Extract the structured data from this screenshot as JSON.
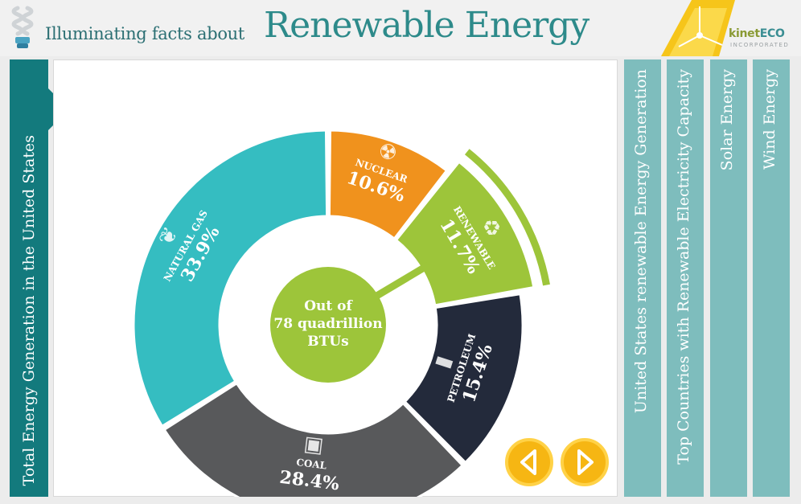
{
  "header": {
    "subtitle": "Illuminating facts about",
    "title": "Renewable Energy",
    "logo": {
      "brand_prefix": "kinet",
      "brand_suffix": "ECO",
      "sub": "INCORPORATED"
    },
    "icon": "cfl-bulb-icon"
  },
  "left_tab": {
    "label": "Total Energy Generation in the United States"
  },
  "right_tabs": [
    {
      "label": "United States renewable Energy Generation"
    },
    {
      "label": "Top Countries with Renewable Electricity Capacity"
    },
    {
      "label": "Solar Energy"
    },
    {
      "label": "Wind Energy"
    }
  ],
  "chart_data": {
    "type": "pie",
    "variant": "donut",
    "center_text": [
      "Out of",
      "78 quadrillion",
      "BTUs"
    ],
    "slices": [
      {
        "name": "NUCLEAR",
        "value": 10.6,
        "label": "10.6%",
        "color": "#f0921d",
        "icon": "radiation-icon"
      },
      {
        "name": "RENEWABLE",
        "value": 11.7,
        "label": "11.7%",
        "color": "#9dc53a",
        "icon": "recycle-icon"
      },
      {
        "name": "PETROLEUM",
        "value": 15.4,
        "label": "15.4%",
        "color": "#232a3b",
        "icon": "barrel-icon"
      },
      {
        "name": "COAL",
        "value": 28.4,
        "label": "28.4%",
        "color": "#58595b",
        "icon": "mine-cart-icon"
      },
      {
        "name": "NATURAL GAS",
        "value": 33.9,
        "label": "33.9%",
        "color": "#35bdc1",
        "icon": "flame-icon"
      }
    ]
  },
  "colors": {
    "teal_dark": "#137a7d",
    "teal_light": "#7ebdbd",
    "title": "#2d8a8a",
    "nav_button": "#f6b613"
  },
  "nav": {
    "prev_icon": "chevron-left-icon",
    "next_icon": "chevron-right-icon"
  }
}
